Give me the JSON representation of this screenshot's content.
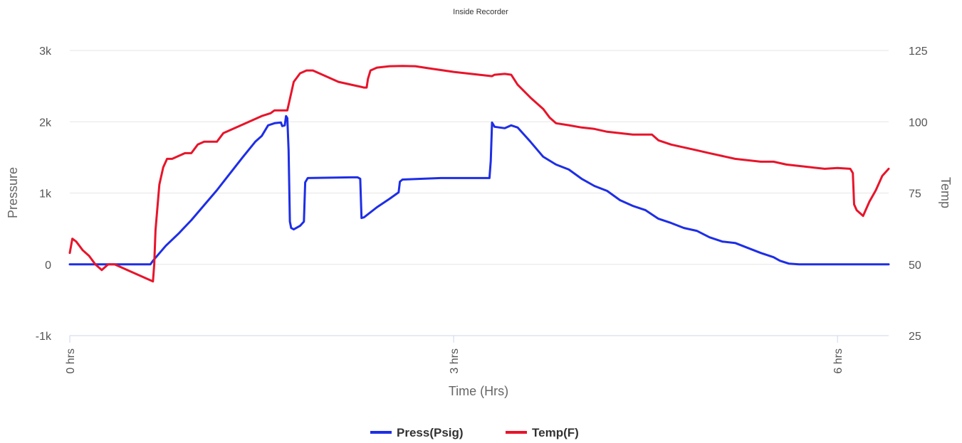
{
  "chart_data": {
    "type": "line",
    "title": "Inside Recorder",
    "xlabel": "Time (Hrs)",
    "ylabel_left": "Pressure",
    "ylabel_right": "Temp",
    "xlim": [
      0,
      6.4
    ],
    "ylim_left": [
      -1000,
      3000
    ],
    "ylim_right": [
      25,
      125
    ],
    "x_ticks": [
      0,
      3,
      6
    ],
    "x_tick_labels": [
      "0 hrs",
      "3 hrs",
      "6 hrs"
    ],
    "y_left_ticks": [
      -1000,
      0,
      1000,
      2000,
      3000
    ],
    "y_left_tick_labels": [
      "-1k",
      "0",
      "1k",
      "2k",
      "3k"
    ],
    "y_right_ticks": [
      25,
      50,
      75,
      100,
      125
    ],
    "y_right_tick_labels": [
      "25",
      "50",
      "75",
      "100",
      "125"
    ],
    "grid": true,
    "legend_position": "bottom-center",
    "series": [
      {
        "name": "Press(Psig)",
        "axis": "left",
        "color": "#1e2ee6",
        "points": [
          [
            0,
            0
          ],
          [
            0.63,
            0
          ],
          [
            0.65,
            50
          ],
          [
            0.75,
            260
          ],
          [
            0.85,
            430
          ],
          [
            0.95,
            620
          ],
          [
            1.05,
            830
          ],
          [
            1.15,
            1040
          ],
          [
            1.25,
            1270
          ],
          [
            1.35,
            1500
          ],
          [
            1.45,
            1720
          ],
          [
            1.5,
            1800
          ],
          [
            1.55,
            1950
          ],
          [
            1.6,
            1980
          ],
          [
            1.65,
            1990
          ],
          [
            1.66,
            1940
          ],
          [
            1.68,
            1950
          ],
          [
            1.69,
            2080
          ],
          [
            1.7,
            2050
          ],
          [
            1.71,
            1600
          ],
          [
            1.72,
            600
          ],
          [
            1.73,
            510
          ],
          [
            1.75,
            490
          ],
          [
            1.8,
            540
          ],
          [
            1.83,
            600
          ],
          [
            1.84,
            1150
          ],
          [
            1.86,
            1210
          ],
          [
            2.2,
            1220
          ],
          [
            2.25,
            1220
          ],
          [
            2.27,
            1200
          ],
          [
            2.28,
            650
          ],
          [
            2.3,
            660
          ],
          [
            2.4,
            800
          ],
          [
            2.5,
            920
          ],
          [
            2.57,
            1010
          ],
          [
            2.58,
            1160
          ],
          [
            2.6,
            1190
          ],
          [
            2.9,
            1210
          ],
          [
            3.2,
            1210
          ],
          [
            3.28,
            1210
          ],
          [
            3.29,
            1450
          ],
          [
            3.3,
            1990
          ],
          [
            3.32,
            1930
          ],
          [
            3.4,
            1910
          ],
          [
            3.45,
            1950
          ],
          [
            3.5,
            1920
          ],
          [
            3.6,
            1720
          ],
          [
            3.7,
            1510
          ],
          [
            3.8,
            1400
          ],
          [
            3.9,
            1330
          ],
          [
            4.0,
            1200
          ],
          [
            4.1,
            1100
          ],
          [
            4.2,
            1030
          ],
          [
            4.3,
            900
          ],
          [
            4.4,
            820
          ],
          [
            4.5,
            760
          ],
          [
            4.6,
            640
          ],
          [
            4.7,
            580
          ],
          [
            4.8,
            510
          ],
          [
            4.9,
            470
          ],
          [
            5.0,
            380
          ],
          [
            5.1,
            320
          ],
          [
            5.2,
            300
          ],
          [
            5.3,
            230
          ],
          [
            5.4,
            160
          ],
          [
            5.5,
            100
          ],
          [
            5.55,
            50
          ],
          [
            5.62,
            10
          ],
          [
            5.7,
            0
          ],
          [
            6.4,
            0
          ]
        ]
      },
      {
        "name": "Temp(F)",
        "axis": "right",
        "color": "#e8142a",
        "points": [
          [
            0,
            54
          ],
          [
            0.02,
            59
          ],
          [
            0.05,
            58
          ],
          [
            0.1,
            55
          ],
          [
            0.15,
            53
          ],
          [
            0.2,
            50
          ],
          [
            0.25,
            48
          ],
          [
            0.3,
            50
          ],
          [
            0.35,
            50
          ],
          [
            0.4,
            49
          ],
          [
            0.5,
            47
          ],
          [
            0.6,
            45
          ],
          [
            0.65,
            44
          ],
          [
            0.66,
            50
          ],
          [
            0.67,
            62
          ],
          [
            0.7,
            78
          ],
          [
            0.73,
            84
          ],
          [
            0.76,
            87
          ],
          [
            0.8,
            87
          ],
          [
            0.85,
            88
          ],
          [
            0.9,
            89
          ],
          [
            0.95,
            89
          ],
          [
            1.0,
            92
          ],
          [
            1.05,
            93
          ],
          [
            1.1,
            93
          ],
          [
            1.15,
            93
          ],
          [
            1.2,
            96
          ],
          [
            1.3,
            98
          ],
          [
            1.4,
            100
          ],
          [
            1.5,
            102
          ],
          [
            1.57,
            103
          ],
          [
            1.6,
            104
          ],
          [
            1.7,
            104
          ],
          [
            1.72,
            108
          ],
          [
            1.75,
            114
          ],
          [
            1.8,
            117
          ],
          [
            1.85,
            118
          ],
          [
            1.9,
            118
          ],
          [
            2.0,
            116
          ],
          [
            2.1,
            114
          ],
          [
            2.2,
            113
          ],
          [
            2.3,
            112
          ],
          [
            2.32,
            112
          ],
          [
            2.33,
            115
          ],
          [
            2.35,
            118
          ],
          [
            2.4,
            119
          ],
          [
            2.5,
            119.5
          ],
          [
            2.6,
            119.6
          ],
          [
            2.7,
            119.5
          ],
          [
            2.8,
            118.8
          ],
          [
            3.0,
            117.5
          ],
          [
            3.2,
            116.5
          ],
          [
            3.3,
            116
          ],
          [
            3.32,
            116.5
          ],
          [
            3.4,
            116.8
          ],
          [
            3.45,
            116.5
          ],
          [
            3.5,
            113
          ],
          [
            3.6,
            108.5
          ],
          [
            3.7,
            104.5
          ],
          [
            3.75,
            101.5
          ],
          [
            3.8,
            99.5
          ],
          [
            3.9,
            98.8
          ],
          [
            4.0,
            98
          ],
          [
            4.1,
            97.5
          ],
          [
            4.2,
            96.5
          ],
          [
            4.3,
            96
          ],
          [
            4.4,
            95.5
          ],
          [
            4.5,
            95.5
          ],
          [
            4.55,
            95.5
          ],
          [
            4.6,
            93.5
          ],
          [
            4.7,
            92
          ],
          [
            4.8,
            91
          ],
          [
            4.9,
            90
          ],
          [
            5.0,
            89
          ],
          [
            5.1,
            88
          ],
          [
            5.2,
            87
          ],
          [
            5.3,
            86.5
          ],
          [
            5.4,
            86
          ],
          [
            5.5,
            86
          ],
          [
            5.6,
            85
          ],
          [
            5.7,
            84.5
          ],
          [
            5.8,
            84
          ],
          [
            5.9,
            83.5
          ],
          [
            6.0,
            83.8
          ],
          [
            6.1,
            83.5
          ],
          [
            6.12,
            82
          ],
          [
            6.13,
            71
          ],
          [
            6.15,
            69
          ],
          [
            6.2,
            67
          ],
          [
            6.25,
            72
          ],
          [
            6.3,
            76
          ],
          [
            6.35,
            81
          ],
          [
            6.4,
            83.5
          ]
        ]
      }
    ]
  }
}
